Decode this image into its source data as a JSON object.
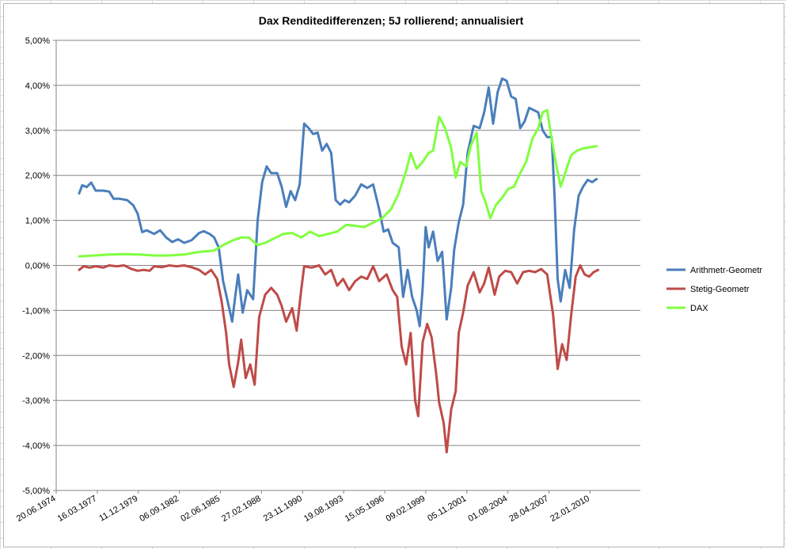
{
  "chart_data": {
    "type": "line",
    "title": "Dax Renditedifferenzen; 5J rollierend; annualisiert",
    "xlabel": "",
    "ylabel": "",
    "ylim": [
      -5,
      5
    ],
    "y_unit": "%",
    "grid": true,
    "legend_position": "right",
    "y_ticks": [
      "5,00%",
      "4,00%",
      "3,00%",
      "2,00%",
      "1,00%",
      "0,00%",
      "-1,00%",
      "-2,00%",
      "-3,00%",
      "-4,00%",
      "-5,00%"
    ],
    "x_ticks": [
      "20.06.1974",
      "16.03.1977",
      "11.12.1979",
      "06.09.1982",
      "02.06.1985",
      "27.02.1988",
      "23.11.1990",
      "19.08.1993",
      "15.05.1996",
      "09.02.1999",
      "05.11.2001",
      "01.08.2004",
      "28.04.2007",
      "22.01.2010"
    ],
    "x_range": [
      "20.06.1974",
      "30.05.2013"
    ],
    "series": [
      {
        "name": "Arithmetr-Geometr",
        "color": "#4a7ebb",
        "points": [
          [
            "1976.0",
            1.6
          ],
          [
            "1976.2",
            1.78
          ],
          [
            "1976.5",
            1.74
          ],
          [
            "1976.8",
            1.84
          ],
          [
            "1977.1",
            1.66
          ],
          [
            "1977.6",
            1.66
          ],
          [
            "1978.0",
            1.64
          ],
          [
            "1978.3",
            1.48
          ],
          [
            "1978.7",
            1.48
          ],
          [
            "1979.2",
            1.45
          ],
          [
            "1979.6",
            1.34
          ],
          [
            "1979.9",
            1.15
          ],
          [
            "1980.2",
            0.74
          ],
          [
            "1980.5",
            0.78
          ],
          [
            "1981.0",
            0.7
          ],
          [
            "1981.4",
            0.78
          ],
          [
            "1981.8",
            0.62
          ],
          [
            "1982.2",
            0.52
          ],
          [
            "1982.6",
            0.58
          ],
          [
            "1983.0",
            0.5
          ],
          [
            "1983.5",
            0.56
          ],
          [
            "1984.0",
            0.72
          ],
          [
            "1984.3",
            0.76
          ],
          [
            "1984.7",
            0.7
          ],
          [
            "1985.0",
            0.62
          ],
          [
            "1985.3",
            0.4
          ],
          [
            "1985.6",
            -0.35
          ],
          [
            "1985.9",
            -0.8
          ],
          [
            "1986.2",
            -1.25
          ],
          [
            "1986.4",
            -0.7
          ],
          [
            "1986.6",
            -0.2
          ],
          [
            "1986.9",
            -1.05
          ],
          [
            "1987.2",
            -0.55
          ],
          [
            "1987.6",
            -0.75
          ],
          [
            "1987.9",
            1.0
          ],
          [
            "1988.2",
            1.85
          ],
          [
            "1988.5",
            2.2
          ],
          [
            "1988.8",
            2.05
          ],
          [
            "1989.2",
            2.05
          ],
          [
            "1989.5",
            1.75
          ],
          [
            "1989.8",
            1.3
          ],
          [
            "1990.1",
            1.65
          ],
          [
            "1990.4",
            1.45
          ],
          [
            "1990.7",
            1.8
          ],
          [
            "1991.0",
            3.15
          ],
          [
            "1991.3",
            3.05
          ],
          [
            "1991.6",
            2.92
          ],
          [
            "1991.9",
            2.95
          ],
          [
            "1992.2",
            2.55
          ],
          [
            "1992.5",
            2.7
          ],
          [
            "1992.8",
            2.5
          ],
          [
            "1993.1",
            1.45
          ],
          [
            "1993.4",
            1.35
          ],
          [
            "1993.7",
            1.45
          ],
          [
            "1994.0",
            1.4
          ],
          [
            "1994.4",
            1.55
          ],
          [
            "1994.8",
            1.8
          ],
          [
            "1995.2",
            1.72
          ],
          [
            "1995.6",
            1.8
          ],
          [
            "1996.0",
            1.25
          ],
          [
            "1996.3",
            0.75
          ],
          [
            "1996.6",
            0.8
          ],
          [
            "1996.9",
            0.5
          ],
          [
            "1997.3",
            0.4
          ],
          [
            "1997.6",
            -0.7
          ],
          [
            "1997.9",
            -0.1
          ],
          [
            "1998.2",
            -0.7
          ],
          [
            "1998.5",
            -1.0
          ],
          [
            "1998.7",
            -1.35
          ],
          [
            "1998.9",
            -0.5
          ],
          [
            "1999.1",
            0.85
          ],
          [
            "1999.3",
            0.4
          ],
          [
            "1999.6",
            0.75
          ],
          [
            "1999.9",
            0.1
          ],
          [
            "2000.2",
            0.3
          ],
          [
            "2000.5",
            -1.2
          ],
          [
            "2000.8",
            -0.5
          ],
          [
            "2001.0",
            0.35
          ],
          [
            "2001.3",
            0.95
          ],
          [
            "2001.6",
            1.35
          ],
          [
            "2001.9",
            2.5
          ],
          [
            "2002.3",
            3.1
          ],
          [
            "2002.7",
            3.05
          ],
          [
            "2003.0",
            3.4
          ],
          [
            "2003.3",
            3.95
          ],
          [
            "2003.6",
            3.15
          ],
          [
            "2003.9",
            3.85
          ],
          [
            "2004.2",
            4.15
          ],
          [
            "2004.5",
            4.1
          ],
          [
            "2004.8",
            3.75
          ],
          [
            "2005.1",
            3.7
          ],
          [
            "2005.4",
            3.05
          ],
          [
            "2005.7",
            3.2
          ],
          [
            "2006.0",
            3.5
          ],
          [
            "2006.3",
            3.45
          ],
          [
            "2006.6",
            3.4
          ],
          [
            "2006.9",
            3.0
          ],
          [
            "2007.2",
            2.85
          ],
          [
            "2007.5",
            2.85
          ],
          [
            "2007.7",
            1.5
          ],
          [
            "2007.9",
            -0.3
          ],
          [
            "2008.1",
            -0.8
          ],
          [
            "2008.4",
            -0.1
          ],
          [
            "2008.7",
            -0.5
          ],
          [
            "2009.0",
            0.8
          ],
          [
            "2009.3",
            1.55
          ],
          [
            "2009.6",
            1.75
          ],
          [
            "2009.9",
            1.9
          ],
          [
            "2010.2",
            1.85
          ],
          [
            "2010.5",
            1.92
          ]
        ]
      },
      {
        "name": "Stetig-Geometr",
        "color": "#be4b48",
        "points": [
          [
            "1976.0",
            -0.1
          ],
          [
            "1976.3",
            -0.02
          ],
          [
            "1976.7",
            -0.05
          ],
          [
            "1977.1",
            -0.02
          ],
          [
            "1977.6",
            -0.05
          ],
          [
            "1978.0",
            0.0
          ],
          [
            "1978.5",
            -0.02
          ],
          [
            "1979.0",
            0.0
          ],
          [
            "1979.5",
            -0.08
          ],
          [
            "1979.9",
            -0.12
          ],
          [
            "1980.3",
            -0.1
          ],
          [
            "1980.7",
            -0.12
          ],
          [
            "1981.0",
            -0.02
          ],
          [
            "1981.5",
            -0.04
          ],
          [
            "1982.0",
            0.0
          ],
          [
            "1982.5",
            -0.02
          ],
          [
            "1983.0",
            0.0
          ],
          [
            "1983.5",
            -0.04
          ],
          [
            "1984.0",
            -0.1
          ],
          [
            "1984.4",
            -0.2
          ],
          [
            "1984.8",
            -0.1
          ],
          [
            "1985.2",
            -0.3
          ],
          [
            "1985.5",
            -0.8
          ],
          [
            "1985.8",
            -1.5
          ],
          [
            "1986.0",
            -2.2
          ],
          [
            "1986.3",
            -2.7
          ],
          [
            "1986.6",
            -2.15
          ],
          [
            "1986.8",
            -1.65
          ],
          [
            "1987.1",
            -2.5
          ],
          [
            "1987.4",
            -2.2
          ],
          [
            "1987.7",
            -2.65
          ],
          [
            "1988.0",
            -1.15
          ],
          [
            "1988.4",
            -0.65
          ],
          [
            "1988.8",
            -0.5
          ],
          [
            "1989.2",
            -0.65
          ],
          [
            "1989.5",
            -0.9
          ],
          [
            "1989.8",
            -1.25
          ],
          [
            "1990.2",
            -0.95
          ],
          [
            "1990.5",
            -1.45
          ],
          [
            "1990.8",
            -0.55
          ],
          [
            "1991.0",
            -0.02
          ],
          [
            "1991.5",
            -0.05
          ],
          [
            "1992.0",
            0.0
          ],
          [
            "1992.4",
            -0.2
          ],
          [
            "1992.8",
            -0.1
          ],
          [
            "1993.2",
            -0.45
          ],
          [
            "1993.6",
            -0.3
          ],
          [
            "1994.0",
            -0.55
          ],
          [
            "1994.4",
            -0.35
          ],
          [
            "1994.8",
            -0.25
          ],
          [
            "1995.2",
            -0.3
          ],
          [
            "1995.6",
            -0.02
          ],
          [
            "1996.0",
            -0.35
          ],
          [
            "1996.5",
            -0.2
          ],
          [
            "1996.9",
            -0.55
          ],
          [
            "1997.2",
            -0.7
          ],
          [
            "1997.5",
            -1.8
          ],
          [
            "1997.8",
            -2.2
          ],
          [
            "1998.1",
            -1.5
          ],
          [
            "1998.4",
            -3.0
          ],
          [
            "1998.6",
            -3.35
          ],
          [
            "1998.9",
            -1.7
          ],
          [
            "1999.2",
            -1.3
          ],
          [
            "1999.5",
            -1.6
          ],
          [
            "1999.8",
            -2.4
          ],
          [
            "2000.0",
            -3.05
          ],
          [
            "2000.3",
            -3.5
          ],
          [
            "2000.5",
            -4.15
          ],
          [
            "2000.8",
            -3.2
          ],
          [
            "2001.1",
            -2.8
          ],
          [
            "2001.3",
            -1.5
          ],
          [
            "2001.6",
            -1.05
          ],
          [
            "2001.9",
            -0.45
          ],
          [
            "2002.3",
            -0.15
          ],
          [
            "2002.7",
            -0.6
          ],
          [
            "2003.0",
            -0.4
          ],
          [
            "2003.3",
            -0.05
          ],
          [
            "2003.7",
            -0.65
          ],
          [
            "2004.0",
            -0.25
          ],
          [
            "2004.4",
            -0.12
          ],
          [
            "2004.8",
            -0.15
          ],
          [
            "2005.2",
            -0.4
          ],
          [
            "2005.6",
            -0.15
          ],
          [
            "2006.0",
            -0.12
          ],
          [
            "2006.4",
            -0.15
          ],
          [
            "2006.8",
            -0.08
          ],
          [
            "2007.2",
            -0.2
          ],
          [
            "2007.6",
            -1.1
          ],
          [
            "2007.9",
            -2.3
          ],
          [
            "2008.2",
            -1.75
          ],
          [
            "2008.5",
            -2.1
          ],
          [
            "2008.8",
            -1.1
          ],
          [
            "2009.1",
            -0.25
          ],
          [
            "2009.4",
            0.0
          ],
          [
            "2009.7",
            -0.2
          ],
          [
            "2010.0",
            -0.25
          ],
          [
            "2010.3",
            -0.15
          ],
          [
            "2010.6",
            -0.1
          ]
        ]
      },
      {
        "name": "DAX",
        "color": "#80ff40",
        "points": [
          [
            "1976.0",
            0.2
          ],
          [
            "1977.0",
            0.22
          ],
          [
            "1978.0",
            0.24
          ],
          [
            "1979.0",
            0.25
          ],
          [
            "1980.0",
            0.24
          ],
          [
            "1981.0",
            0.22
          ],
          [
            "1982.0",
            0.22
          ],
          [
            "1983.0",
            0.24
          ],
          [
            "1984.0",
            0.3
          ],
          [
            "1985.0",
            0.33
          ],
          [
            "1985.6",
            0.45
          ],
          [
            "1986.2",
            0.55
          ],
          [
            "1986.8",
            0.62
          ],
          [
            "1987.3",
            0.62
          ],
          [
            "1987.9",
            0.45
          ],
          [
            "1988.4",
            0.5
          ],
          [
            "1989.0",
            0.6
          ],
          [
            "1989.6",
            0.7
          ],
          [
            "1990.2",
            0.72
          ],
          [
            "1990.8",
            0.62
          ],
          [
            "1991.4",
            0.75
          ],
          [
            "1992.0",
            0.65
          ],
          [
            "1992.6",
            0.7
          ],
          [
            "1993.2",
            0.75
          ],
          [
            "1993.8",
            0.9
          ],
          [
            "1994.4",
            0.88
          ],
          [
            "1995.0",
            0.85
          ],
          [
            "1995.6",
            0.95
          ],
          [
            "1996.2",
            1.05
          ],
          [
            "1996.8",
            1.25
          ],
          [
            "1997.3",
            1.6
          ],
          [
            "1997.8",
            2.1
          ],
          [
            "1998.1",
            2.5
          ],
          [
            "1998.5",
            2.15
          ],
          [
            "1998.9",
            2.3
          ],
          [
            "1999.3",
            2.5
          ],
          [
            "1999.6",
            2.55
          ],
          [
            "2000.0",
            3.3
          ],
          [
            "2000.4",
            3.05
          ],
          [
            "2000.8",
            2.6
          ],
          [
            "2001.1",
            1.95
          ],
          [
            "2001.4",
            2.3
          ],
          [
            "2001.8",
            2.2
          ],
          [
            "2002.1",
            2.65
          ],
          [
            "2002.5",
            2.95
          ],
          [
            "2002.8",
            1.65
          ],
          [
            "2003.1",
            1.4
          ],
          [
            "2003.4",
            1.05
          ],
          [
            "2003.8",
            1.35
          ],
          [
            "2004.2",
            1.5
          ],
          [
            "2004.6",
            1.7
          ],
          [
            "2005.0",
            1.75
          ],
          [
            "2005.4",
            2.05
          ],
          [
            "2005.8",
            2.3
          ],
          [
            "2006.2",
            2.8
          ],
          [
            "2006.6",
            3.05
          ],
          [
            "2006.9",
            3.4
          ],
          [
            "2007.2",
            3.45
          ],
          [
            "2007.5",
            2.8
          ],
          [
            "2007.8",
            2.25
          ],
          [
            "2008.1",
            1.75
          ],
          [
            "2008.4",
            2.05
          ],
          [
            "2008.8",
            2.45
          ],
          [
            "2009.2",
            2.55
          ],
          [
            "2009.6",
            2.6
          ],
          [
            "2010.0",
            2.62
          ],
          [
            "2010.5",
            2.65
          ]
        ]
      }
    ]
  }
}
